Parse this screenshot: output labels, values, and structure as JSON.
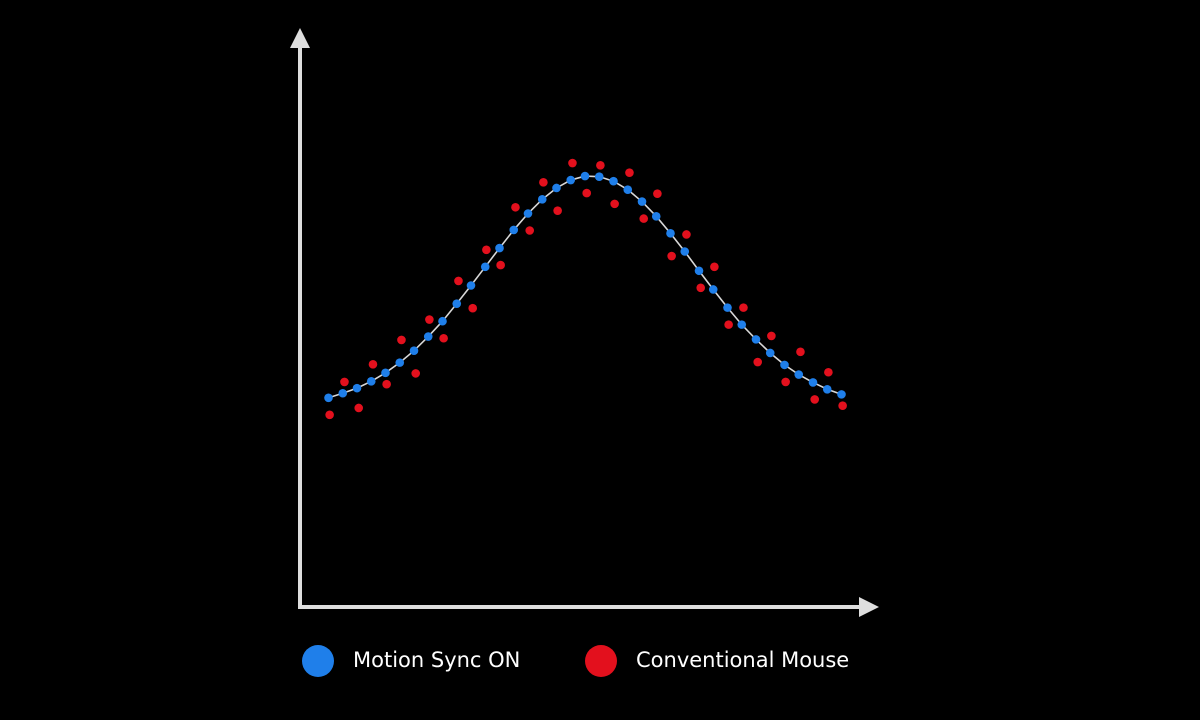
{
  "chart_data": {
    "type": "scatter",
    "xlim": [
      0,
      100
    ],
    "ylim": [
      0,
      100
    ],
    "series": [
      {
        "name": "Motion Sync ON",
        "color": "#1f7fea",
        "line_color": "#d8d8d8",
        "x": [
          5,
          7.5,
          10,
          12.5,
          15,
          17.5,
          20,
          22.5,
          25,
          27.5,
          30,
          32.5,
          35,
          37.5,
          40,
          42.5,
          45,
          47.5,
          50,
          52.5,
          55,
          57.5,
          60,
          62.5,
          65,
          67.5,
          70,
          72.5,
          75,
          77.5,
          80,
          82.5,
          85,
          87.5,
          90,
          92.5,
          95
        ],
        "values": [
          36.9,
          37.7,
          38.6,
          39.8,
          41.3,
          43.1,
          45.2,
          47.7,
          50.4,
          53.5,
          56.7,
          60.0,
          63.3,
          66.5,
          69.4,
          71.9,
          73.9,
          75.3,
          76.0,
          75.9,
          75.1,
          73.6,
          71.5,
          68.9,
          65.9,
          62.7,
          59.3,
          56.0,
          52.8,
          49.8,
          47.2,
          44.8,
          42.7,
          41.0,
          39.6,
          38.4,
          37.5
        ]
      },
      {
        "name": "Conventional Mouse",
        "color": "#e3101d",
        "x": [
          5.2,
          7.8,
          10.3,
          12.8,
          15.2,
          17.8,
          20.3,
          22.7,
          25.2,
          27.8,
          30.3,
          32.7,
          35.2,
          37.8,
          40.3,
          42.7,
          45.2,
          47.8,
          50.3,
          52.7,
          55.2,
          57.8,
          60.3,
          62.7,
          65.2,
          67.8,
          70.3,
          72.7,
          75.2,
          77.8,
          80.3,
          82.7,
          85.2,
          87.8,
          90.3,
          92.7,
          95.2
        ],
        "values": [
          33.9,
          39.7,
          35.1,
          42.8,
          39.3,
          47.1,
          41.2,
          50.7,
          47.4,
          57.5,
          52.7,
          63.0,
          60.3,
          70.5,
          66.4,
          74.9,
          69.9,
          78.3,
          73.0,
          77.9,
          71.1,
          76.6,
          68.5,
          72.9,
          61.9,
          65.7,
          56.3,
          60.0,
          49.8,
          52.8,
          43.2,
          47.8,
          39.7,
          45.0,
          36.6,
          41.4,
          35.5
        ]
      }
    ]
  }
}
